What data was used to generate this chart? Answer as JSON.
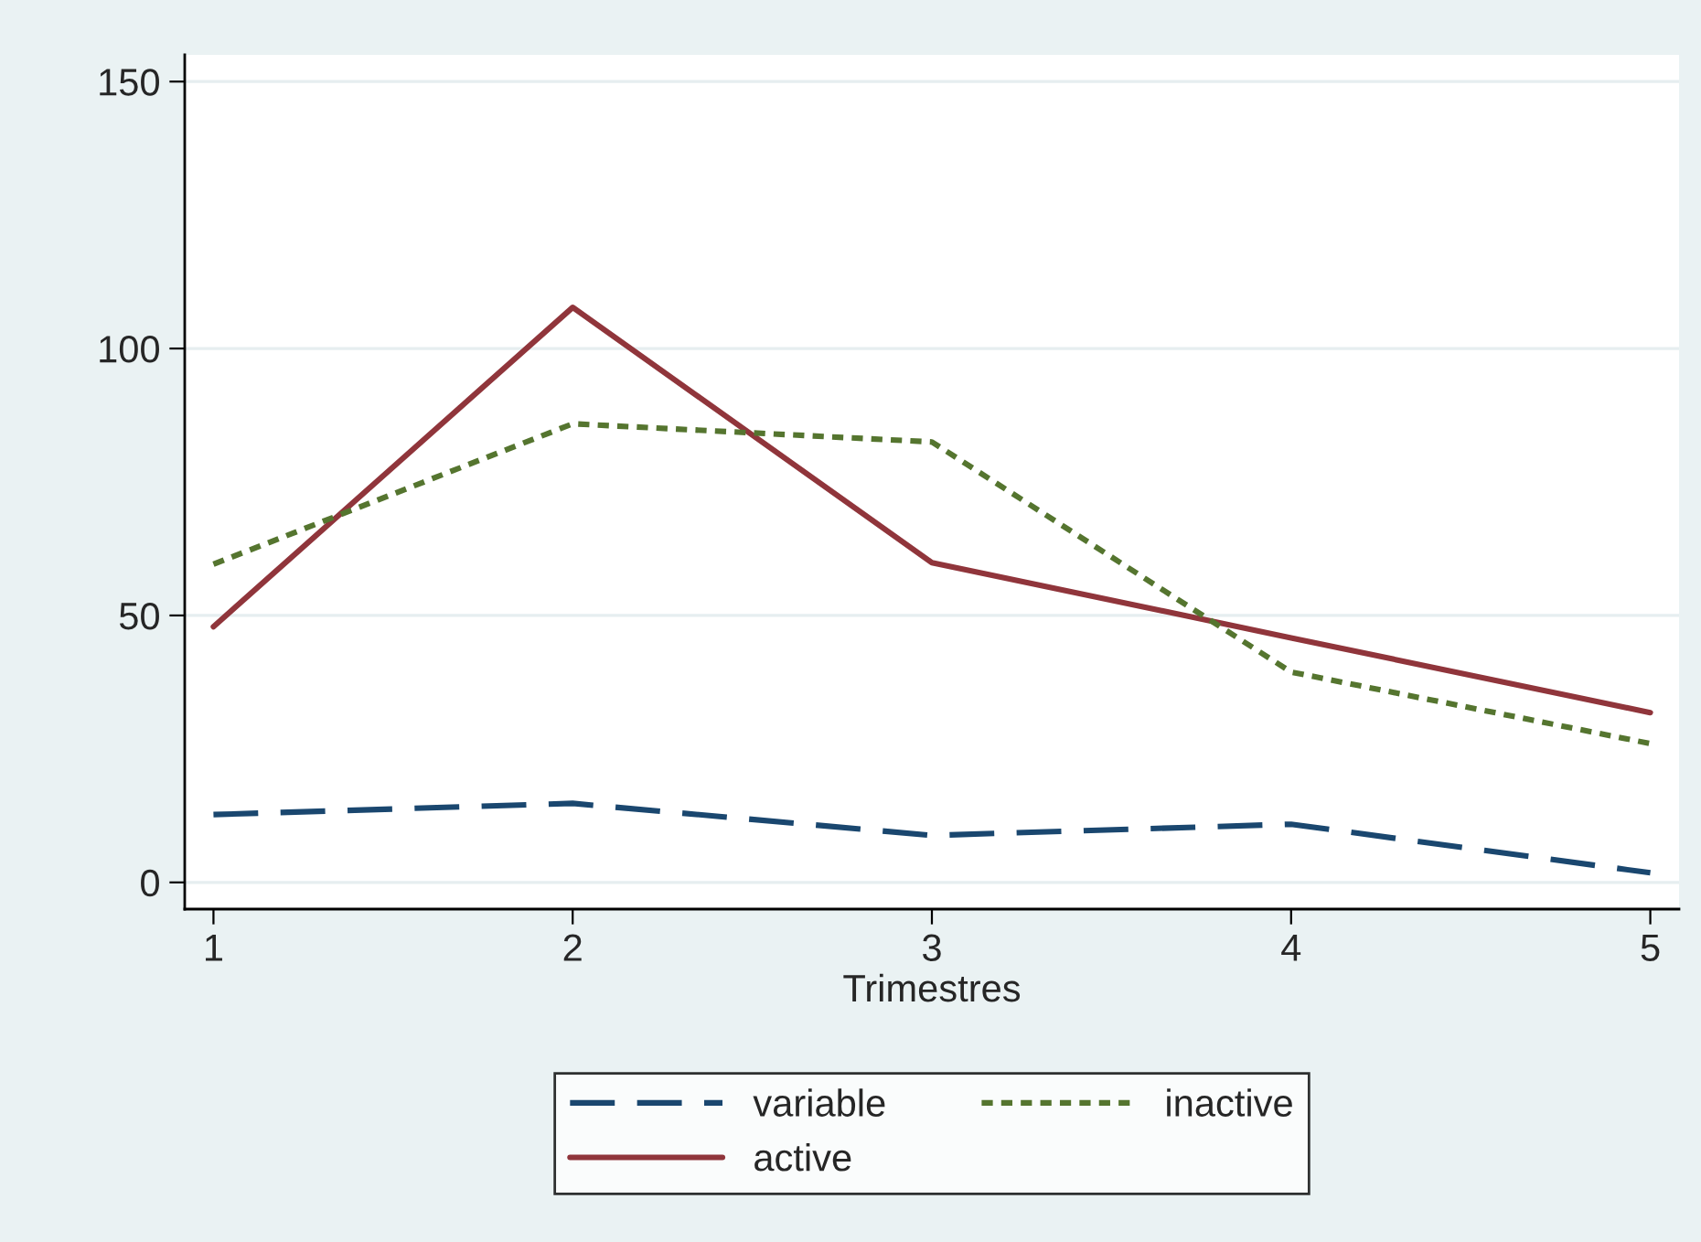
{
  "chart_data": {
    "type": "line",
    "xlabel": "Trimestres",
    "x": [
      1,
      2,
      3,
      4,
      5
    ],
    "series": [
      {
        "name": "variable",
        "color": "#1a476f",
        "line_style": "dashed",
        "values": [
          12.7,
          14.8,
          8.8,
          10.9,
          1.8
        ]
      },
      {
        "name": "active",
        "color": "#90353b",
        "line_style": "solid",
        "values": [
          47.9,
          107.7,
          59.9,
          45.8,
          31.8
        ]
      },
      {
        "name": "inactive",
        "color": "#55752f",
        "line_style": "dotted",
        "values": [
          59.6,
          85.9,
          82.5,
          39.4,
          26.0
        ]
      }
    ],
    "xlim": [
      0.92,
      5.08
    ],
    "ylim": [
      -5,
      155
    ],
    "xticks": [
      1,
      2,
      3,
      4,
      5
    ],
    "yticks": [
      0,
      50,
      100,
      150
    ],
    "grid": "y",
    "legend": "bottom",
    "marker": "none"
  }
}
